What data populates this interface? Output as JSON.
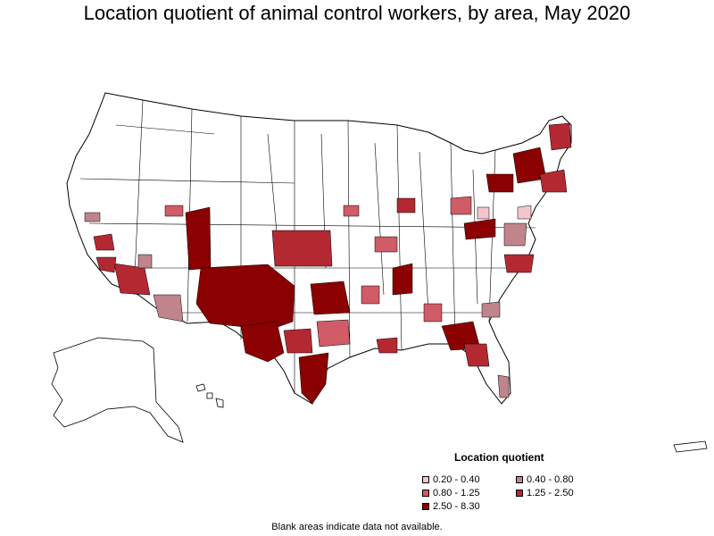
{
  "title": "Location quotient of animal control workers, by area, May 2020",
  "legend": {
    "title": "Location quotient",
    "items": [
      {
        "label": "0.20 - 0.40",
        "color": "#f4c6cc"
      },
      {
        "label": "0.40 - 0.80",
        "color": "#c0848c"
      },
      {
        "label": "0.80 - 1.25",
        "color": "#cf5c66"
      },
      {
        "label": "1.25 - 2.50",
        "color": "#b42832"
      },
      {
        "label": "2.50 - 8.30",
        "color": "#8b0000"
      }
    ]
  },
  "footnote": "Blank areas indicate data not available.",
  "colors": {
    "outline": "#000000",
    "no_data": "#ffffff"
  }
}
